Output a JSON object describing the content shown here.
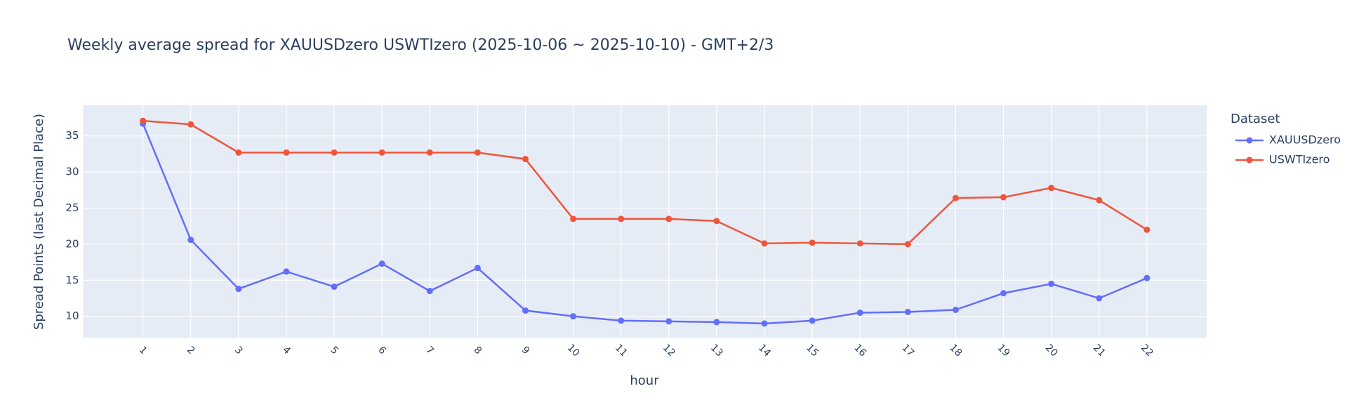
{
  "chart_data": {
    "type": "line",
    "title": "Weekly average spread for  XAUUSDzero USWTIzero (2025-10-06 ~ 2025-10-10) - GMT+2/3",
    "x_label": "hour",
    "y_label": "Spread Points (last Decimal Place)",
    "legend_title": "Dataset",
    "legend_position": "right",
    "grid": true,
    "x": [
      1,
      2,
      3,
      4,
      5,
      6,
      7,
      8,
      9,
      10,
      11,
      12,
      13,
      14,
      15,
      16,
      17,
      18,
      19,
      20,
      21,
      22
    ],
    "series": [
      {
        "name": "XAUUSDzero",
        "color": "#636efa",
        "values": [
          36.7,
          20.6,
          13.8,
          16.2,
          14.1,
          17.3,
          13.5,
          16.7,
          10.8,
          10.0,
          9.4,
          9.3,
          9.2,
          9.0,
          9.4,
          10.5,
          10.6,
          10.9,
          13.2,
          14.5,
          12.5,
          15.3
        ]
      },
      {
        "name": "USWTIzero",
        "color": "#EF553B",
        "values": [
          37.1,
          36.6,
          32.7,
          32.7,
          32.7,
          32.7,
          32.7,
          32.7,
          31.8,
          23.5,
          23.5,
          23.5,
          23.2,
          20.1,
          20.2,
          20.1,
          20.0,
          26.4,
          26.5,
          27.8,
          26.1,
          22.0
        ]
      }
    ],
    "xlim": [
      -0.25,
      23.25
    ],
    "xticks": [
      1,
      2,
      3,
      4,
      5,
      6,
      7,
      8,
      9,
      10,
      11,
      12,
      13,
      14,
      15,
      16,
      17,
      18,
      19,
      20,
      21,
      22
    ],
    "ylim": [
      7,
      39.25
    ],
    "yticks": [
      10,
      15,
      20,
      25,
      30,
      35
    ]
  }
}
